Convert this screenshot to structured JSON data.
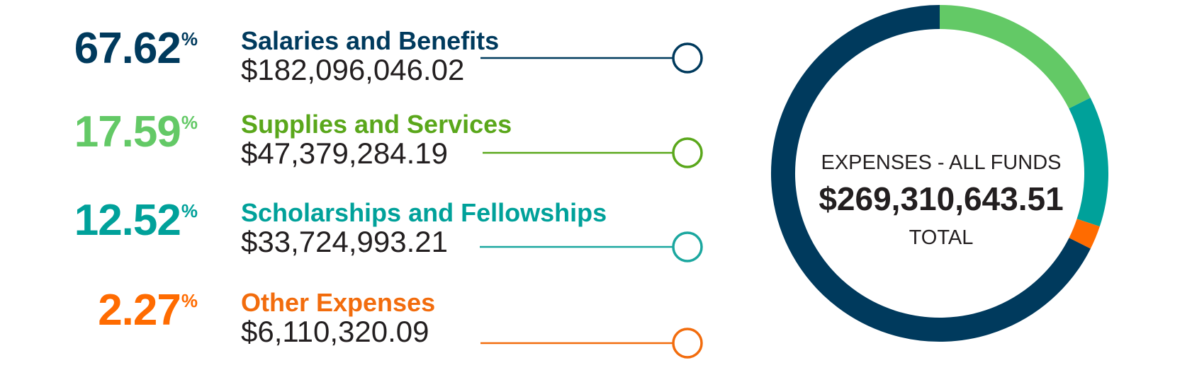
{
  "chart_data": {
    "type": "pie",
    "categories": [
      "Salaries and Benefits",
      "Supplies and Services",
      "Scholarships and Fellowships",
      "Other Expenses"
    ],
    "values": [
      67.62,
      17.59,
      12.52,
      2.27
    ],
    "percent_labels": [
      "67.62",
      "17.59",
      "12.52",
      "2.27"
    ],
    "percent_symbol": "%",
    "amounts": [
      "$182,096,046.02",
      "$47,379,284.19",
      "$33,724,993.21",
      "$6,110,320.09"
    ],
    "colors": [
      "#003a5d",
      "#63c966",
      "#00a19a",
      "#ff6b00"
    ],
    "label_colors": [
      "#003a5d",
      "#5aa71b",
      "#00a19a",
      "#f26c0d"
    ],
    "marker_colors": [
      "#003a5d",
      "#5aa71b",
      "#1ba79f",
      "#f26c0d"
    ],
    "center_title": "EXPENSES - ALL FUNDS",
    "center_total": "$269,310,643.51",
    "center_subtitle": "TOTAL",
    "start_angle_deg": 0,
    "direction": "clockwise",
    "donut": true
  }
}
